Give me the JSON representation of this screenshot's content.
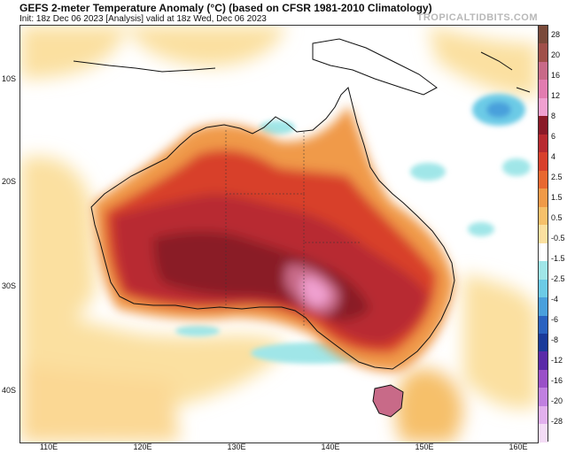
{
  "header": {
    "title": "GEFS 2-meter Temperature Anomaly (°C) (based on CFSR 1981-2010 Climatology)",
    "subtitle": "Init: 18z Dec 06 2023   [Analysis]   valid at 18z Wed, Dec 06 2023",
    "brand": "TROPICALTIDBITS.COM"
  },
  "axes": {
    "lat_labels": [
      "10S",
      "20S",
      "30S",
      "40S"
    ],
    "lon_labels": [
      "110E",
      "120E",
      "130E",
      "140E",
      "150E",
      "160E"
    ]
  },
  "colorbar": {
    "labels": [
      "28",
      "20",
      "16",
      "12",
      "8",
      "6",
      "4",
      "2.5",
      "1.5",
      "0.5",
      "-0.5",
      "-1.5",
      "-2.5",
      "-4",
      "-6",
      "-8",
      "-12",
      "-16",
      "-20",
      "-28"
    ],
    "colors": [
      "#7a4a3a",
      "#a0504a",
      "#c86a88",
      "#e27cb0",
      "#f0a0d0",
      "#8a1a28",
      "#b82a30",
      "#d8402c",
      "#e86830",
      "#f09a48",
      "#f6c06a",
      "#fbe0a0",
      "#ffffff",
      "#a0e6e8",
      "#6ccbe6",
      "#4aa0dc",
      "#2a62c0",
      "#1a3a9a",
      "#5a2aa8",
      "#9a50c8",
      "#c080e0",
      "#e2b0ee",
      "#f4dcf6"
    ],
    "cold_extreme_color": "#f4dcf6"
  },
  "map": {
    "region": "Australia",
    "land_color_hot": "#b82a30",
    "land_color_core": "#e890c8",
    "ocean_color_warm": "#fbe0a0",
    "ocean_color_cool": "#a0e6e8"
  }
}
